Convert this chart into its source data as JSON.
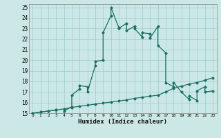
{
  "xlabel": "Humidex (Indice chaleur)",
  "bg_color": "#cce8e6",
  "line_color": "#1a6e64",
  "grid_color": "#99cdc9",
  "xlim": [
    -0.5,
    23.5
  ],
  "ylim": [
    15,
    25.3
  ],
  "xticks": [
    0,
    1,
    2,
    3,
    4,
    5,
    6,
    7,
    8,
    9,
    10,
    11,
    12,
    13,
    14,
    15,
    16,
    17,
    18,
    19,
    20,
    21,
    22,
    23
  ],
  "yticks": [
    15,
    16,
    17,
    18,
    19,
    20,
    21,
    22,
    23,
    24,
    25
  ],
  "series1_x": [
    0,
    1,
    2,
    3,
    3,
    4,
    4,
    5,
    5,
    6,
    6,
    7,
    7,
    8,
    8,
    9,
    9,
    10,
    10,
    11,
    11,
    12,
    12,
    13,
    13,
    14,
    14,
    15,
    15,
    16,
    16,
    17,
    17,
    18,
    18,
    19,
    20,
    20,
    21,
    21,
    22,
    22,
    23
  ],
  "series1_y": [
    15,
    15.1,
    15.2,
    15.3,
    14.9,
    14.9,
    15.2,
    15.6,
    16.7,
    17.3,
    17.6,
    17.5,
    17.0,
    19.5,
    19.9,
    20.0,
    22.6,
    24.2,
    25.0,
    23.1,
    23.0,
    23.5,
    22.8,
    23.2,
    23.0,
    22.2,
    22.6,
    22.5,
    22.1,
    23.2,
    21.4,
    20.7,
    17.9,
    17.5,
    17.9,
    17.0,
    16.3,
    16.6,
    16.2,
    17.1,
    17.5,
    17.0,
    17.1
  ],
  "series2_x": [
    0,
    1,
    2,
    3,
    4,
    5,
    6,
    7,
    8,
    9,
    10,
    11,
    12,
    13,
    14,
    15,
    16,
    17,
    18,
    19,
    20,
    21,
    22,
    23
  ],
  "series2_y": [
    15.0,
    15.1,
    15.2,
    15.3,
    15.4,
    15.55,
    15.65,
    15.75,
    15.85,
    15.95,
    16.05,
    16.15,
    16.25,
    16.4,
    16.5,
    16.6,
    16.7,
    17.0,
    17.35,
    17.55,
    17.75,
    17.9,
    18.1,
    18.35
  ]
}
